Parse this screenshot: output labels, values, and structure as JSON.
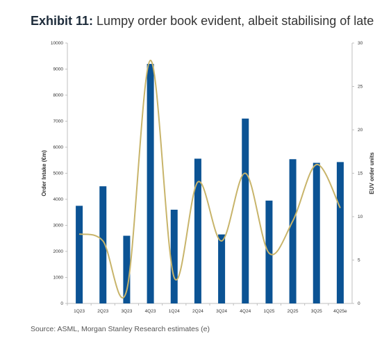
{
  "title": {
    "label": "Exhibit 11:",
    "text": "Lumpy order book evident, albeit stabilising of late"
  },
  "source": "Source: ASML, Morgan Stanley Research estimates (e)",
  "chart_data": {
    "type": "bar",
    "categories": [
      "1Q23",
      "2Q23",
      "3Q23",
      "4Q23",
      "1Q24",
      "2Q24",
      "3Q24",
      "4Q24",
      "1Q25",
      "2Q25",
      "3Q25",
      "4Q25e"
    ],
    "series": [
      {
        "type": "bar",
        "axis": "left",
        "values": [
          3750,
          4500,
          2600,
          9200,
          3600,
          5560,
          2650,
          7100,
          3950,
          5540,
          5400,
          5430
        ]
      },
      {
        "type": "line",
        "axis": "right",
        "values": [
          8,
          7.2,
          1.5,
          28,
          3,
          14,
          7.2,
          15,
          5.8,
          9.5,
          16,
          11
        ]
      }
    ],
    "ylabel": "Order Intake (€m)",
    "y2label": "EUV order units",
    "ylim": [
      0,
      10000
    ],
    "y2lim": [
      0,
      30
    ],
    "yticks": [
      0,
      1000,
      2000,
      3000,
      4000,
      5000,
      6000,
      7000,
      8000,
      9000,
      10000
    ],
    "y2ticks": [
      0,
      5,
      10,
      15,
      20,
      25,
      30
    ],
    "grid": false,
    "colors": {
      "bar": "#0b5394",
      "line": "#c8b46a",
      "axis": "#bfbfbf"
    }
  }
}
